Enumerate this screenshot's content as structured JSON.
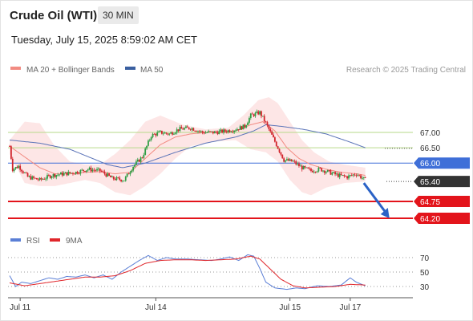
{
  "header": {
    "title": "Crude Oil (WTI)",
    "timeframe": "30 MIN",
    "datetime": "Tuesday, July 15, 2025 8:59:02 AM CET"
  },
  "main_legend": [
    {
      "label": "MA 20 + Bollinger Bands",
      "color": "#f28b82"
    },
    {
      "label": "MA 50",
      "color": "#3a5fa0"
    }
  ],
  "copyright": "Research © 2025 Trading Central",
  "rsi_legend": [
    {
      "label": "RSI",
      "color": "#5b7fd6"
    },
    {
      "label": "9MA",
      "color": "#e0262b"
    }
  ],
  "colors": {
    "up": "#2f9e44",
    "down": "#d1242b",
    "band_fill": "#fde2e2",
    "ma20": "#f28b82",
    "ma50": "#5b74b8",
    "pivot": "#3f6fd8",
    "resistance": "#b6d98a",
    "support": "#e3141b",
    "current": "#333333",
    "arrow": "#2b62c6"
  },
  "chart_data": [
    {
      "type": "candlestick",
      "title": "Crude Oil (WTI)",
      "ylim": [
        63.95,
        67.55
      ],
      "x_tick_labels": [
        "Jul 11",
        "Jul 14",
        "Jul 15",
        "Jul 17"
      ],
      "x_tick_positions": [
        7,
        97,
        186,
        226
      ],
      "n_slots": 250,
      "price_levels": [
        {
          "value": 67.0,
          "label": "67.00",
          "kind": "resistance"
        },
        {
          "value": 66.5,
          "label": "66.50",
          "kind": "resistance"
        },
        {
          "value": 66.0,
          "label": "66.00",
          "kind": "pivot"
        },
        {
          "value": 65.4,
          "label": "65.40",
          "kind": "current"
        },
        {
          "value": 64.75,
          "label": "64.75",
          "kind": "support"
        },
        {
          "value": 64.2,
          "label": "64.20",
          "kind": "support"
        }
      ],
      "arrow": {
        "from": [
          235,
          65.35
        ],
        "to": [
          252,
          64.2
        ]
      },
      "anchors": [
        [
          0,
          66.55
        ],
        [
          2,
          65.8
        ],
        [
          6,
          65.9
        ],
        [
          12,
          65.55
        ],
        [
          20,
          65.45
        ],
        [
          28,
          65.6
        ],
        [
          36,
          65.65
        ],
        [
          44,
          65.7
        ],
        [
          52,
          65.8
        ],
        [
          60,
          65.75
        ],
        [
          68,
          65.5
        ],
        [
          76,
          65.45
        ],
        [
          82,
          65.9
        ],
        [
          88,
          66.2
        ],
        [
          94,
          66.9
        ],
        [
          100,
          67.0
        ],
        [
          106,
          66.95
        ],
        [
          112,
          67.1
        ],
        [
          120,
          67.15
        ],
        [
          128,
          67.0
        ],
        [
          136,
          67.0
        ],
        [
          144,
          67.05
        ],
        [
          150,
          67.1
        ],
        [
          156,
          67.2
        ],
        [
          160,
          67.55
        ],
        [
          166,
          67.65
        ],
        [
          170,
          67.3
        ],
        [
          176,
          66.7
        ],
        [
          182,
          66.1
        ],
        [
          188,
          66.05
        ],
        [
          194,
          65.85
        ],
        [
          200,
          65.75
        ],
        [
          206,
          65.8
        ],
        [
          212,
          65.7
        ],
        [
          218,
          65.6
        ],
        [
          224,
          65.55
        ],
        [
          230,
          65.65
        ],
        [
          233,
          65.55
        ],
        [
          236,
          65.45
        ]
      ],
      "ma20_anchors": [
        [
          0,
          66.55
        ],
        [
          10,
          66.2
        ],
        [
          20,
          65.85
        ],
        [
          30,
          65.65
        ],
        [
          40,
          65.65
        ],
        [
          50,
          65.7
        ],
        [
          60,
          65.72
        ],
        [
          70,
          65.65
        ],
        [
          80,
          65.7
        ],
        [
          90,
          66.15
        ],
        [
          100,
          66.6
        ],
        [
          110,
          66.85
        ],
        [
          120,
          66.95
        ],
        [
          130,
          67.0
        ],
        [
          140,
          67.02
        ],
        [
          150,
          67.05
        ],
        [
          160,
          67.25
        ],
        [
          168,
          67.35
        ],
        [
          176,
          67.05
        ],
        [
          184,
          66.5
        ],
        [
          192,
          66.15
        ],
        [
          200,
          65.95
        ],
        [
          210,
          65.8
        ],
        [
          220,
          65.7
        ],
        [
          230,
          65.65
        ],
        [
          236,
          65.6
        ]
      ],
      "ma50_anchors": [
        [
          0,
          66.75
        ],
        [
          20,
          66.65
        ],
        [
          40,
          66.45
        ],
        [
          55,
          66.15
        ],
        [
          65,
          65.95
        ],
        [
          75,
          65.85
        ],
        [
          90,
          66.0
        ],
        [
          110,
          66.35
        ],
        [
          130,
          66.65
        ],
        [
          150,
          66.85
        ],
        [
          162,
          67.05
        ],
        [
          170,
          67.25
        ],
        [
          180,
          67.2
        ],
        [
          195,
          67.1
        ],
        [
          210,
          66.95
        ],
        [
          225,
          66.7
        ],
        [
          236,
          66.5
        ]
      ],
      "band_upper": [
        [
          0,
          66.75
        ],
        [
          10,
          67.35
        ],
        [
          20,
          67.3
        ],
        [
          30,
          66.55
        ],
        [
          40,
          66.05
        ],
        [
          50,
          65.95
        ],
        [
          60,
          65.95
        ],
        [
          70,
          66.3
        ],
        [
          80,
          66.75
        ],
        [
          90,
          67.35
        ],
        [
          100,
          67.55
        ],
        [
          115,
          67.25
        ],
        [
          130,
          67.1
        ],
        [
          145,
          67.15
        ],
        [
          155,
          67.55
        ],
        [
          165,
          68.05
        ],
        [
          172,
          68.15
        ],
        [
          178,
          67.95
        ],
        [
          186,
          67.35
        ],
        [
          194,
          66.75
        ],
        [
          202,
          66.35
        ],
        [
          212,
          66.05
        ],
        [
          222,
          65.95
        ],
        [
          236,
          65.85
        ]
      ],
      "band_lower": [
        [
          0,
          66.3
        ],
        [
          10,
          65.35
        ],
        [
          20,
          65.25
        ],
        [
          30,
          65.25
        ],
        [
          40,
          65.35
        ],
        [
          50,
          65.45
        ],
        [
          60,
          65.35
        ],
        [
          70,
          65.05
        ],
        [
          80,
          64.95
        ],
        [
          90,
          65.25
        ],
        [
          100,
          65.65
        ],
        [
          110,
          66.15
        ],
        [
          120,
          66.55
        ],
        [
          135,
          66.7
        ],
        [
          150,
          66.75
        ],
        [
          160,
          66.45
        ],
        [
          170,
          66.35
        ],
        [
          178,
          66.05
        ],
        [
          186,
          65.45
        ],
        [
          194,
          65.05
        ],
        [
          200,
          64.95
        ],
        [
          210,
          65.2
        ],
        [
          222,
          65.35
        ],
        [
          236,
          65.4
        ]
      ]
    },
    {
      "type": "line",
      "title": "RSI",
      "ylim": [
        20,
        82
      ],
      "ticks": [
        70,
        50,
        30
      ],
      "series": [
        {
          "name": "RSI",
          "color": "#5b7fd6",
          "values": [
            [
              0,
              45
            ],
            [
              4,
              30
            ],
            [
              8,
              36
            ],
            [
              14,
              34
            ],
            [
              20,
              38
            ],
            [
              26,
              42
            ],
            [
              32,
              40
            ],
            [
              38,
              44
            ],
            [
              44,
              43
            ],
            [
              50,
              46
            ],
            [
              56,
              42
            ],
            [
              62,
              46
            ],
            [
              68,
              40
            ],
            [
              74,
              50
            ],
            [
              80,
              58
            ],
            [
              86,
              66
            ],
            [
              92,
              73
            ],
            [
              98,
              66
            ],
            [
              104,
              70
            ],
            [
              110,
              68
            ],
            [
              118,
              68
            ],
            [
              126,
              67
            ],
            [
              134,
              66
            ],
            [
              140,
              68
            ],
            [
              146,
              71
            ],
            [
              152,
              66
            ],
            [
              158,
              74
            ],
            [
              162,
              72
            ],
            [
              166,
              55
            ],
            [
              170,
              36
            ],
            [
              176,
              28
            ],
            [
              184,
              26
            ],
            [
              190,
              28
            ],
            [
              196,
              27
            ],
            [
              204,
              31
            ],
            [
              212,
              30
            ],
            [
              220,
              32
            ],
            [
              226,
              42
            ],
            [
              230,
              36
            ],
            [
              236,
              31
            ]
          ]
        },
        {
          "name": "9MA",
          "color": "#e0262b",
          "values": [
            [
              0,
              35
            ],
            [
              10,
              31
            ],
            [
              20,
              34
            ],
            [
              30,
              37
            ],
            [
              40,
              40
            ],
            [
              50,
              43
            ],
            [
              60,
              43
            ],
            [
              70,
              45
            ],
            [
              80,
              52
            ],
            [
              90,
              62
            ],
            [
              100,
              66
            ],
            [
              110,
              67
            ],
            [
              120,
              67
            ],
            [
              130,
              66
            ],
            [
              140,
              67
            ],
            [
              150,
              68
            ],
            [
              160,
              72
            ],
            [
              166,
              68
            ],
            [
              172,
              56
            ],
            [
              180,
              40
            ],
            [
              188,
              31
            ],
            [
              196,
              28
            ],
            [
              206,
              29
            ],
            [
              216,
              30
            ],
            [
              226,
              33
            ],
            [
              236,
              32
            ]
          ]
        }
      ]
    }
  ]
}
